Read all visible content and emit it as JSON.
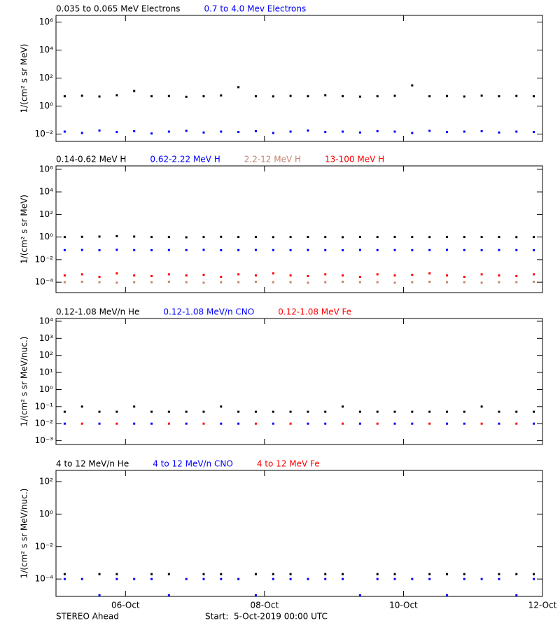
{
  "chart_data": [
    {
      "type": "scatter",
      "log": true,
      "ylabel": "1/(cm² s sr MeV)",
      "xlim": [
        0,
        7
      ],
      "xticks": [
        1,
        3,
        5,
        7
      ],
      "ylim": [
        0.003,
        3000000
      ],
      "yticks": [
        {
          "value": 0.01,
          "label": "10⁻²"
        },
        {
          "value": 1,
          "label": "10⁰"
        },
        {
          "value": 100,
          "label": "10²"
        },
        {
          "value": 10000,
          "label": "10⁴"
        },
        {
          "value": 1000000,
          "label": "10⁶"
        }
      ],
      "x": [
        0.125,
        0.375,
        0.625,
        0.875,
        1.125,
        1.375,
        1.625,
        1.875,
        2.125,
        2.375,
        2.625,
        2.875,
        3.125,
        3.375,
        3.625,
        3.875,
        4.125,
        4.375,
        4.625,
        4.875,
        5.125,
        5.375,
        5.625,
        5.875,
        6.125,
        6.375,
        6.625,
        6.875
      ],
      "series": [
        {
          "name": "0.035 to 0.065 MeV Electrons",
          "color": "#000000",
          "values": [
            5,
            5.5,
            4.8,
            6,
            12,
            5,
            5.2,
            4.6,
            5,
            5.8,
            22,
            5,
            4.9,
            5.3,
            5,
            6,
            5.1,
            4.7,
            5,
            5.4,
            30,
            5,
            5.2,
            4.8,
            5.6,
            5,
            5.3,
            5
          ]
        },
        {
          "name": "0.7 to 4.0 Mev Electrons",
          "color": "#0000ff",
          "values": [
            0.015,
            0.012,
            0.018,
            0.014,
            0.016,
            0.011,
            0.015,
            0.017,
            0.013,
            0.015,
            0.014,
            0.016,
            0.012,
            0.015,
            0.018,
            0.014,
            0.015,
            0.013,
            0.016,
            0.015,
            0.012,
            0.017,
            0.014,
            0.015,
            0.016,
            0.013,
            0.015,
            0.014
          ]
        }
      ]
    },
    {
      "type": "scatter",
      "log": true,
      "ylabel": "1/(cm² s sr MeV)",
      "xlim": [
        0,
        7
      ],
      "xticks": [
        1,
        3,
        5,
        7
      ],
      "ylim": [
        1.2e-05,
        2000000
      ],
      "yticks": [
        {
          "value": 0.0001,
          "label": "10⁻⁴"
        },
        {
          "value": 0.01,
          "label": "10⁻²"
        },
        {
          "value": 1,
          "label": "10⁰"
        },
        {
          "value": 100,
          "label": "10²"
        },
        {
          "value": 10000,
          "label": "10⁴"
        },
        {
          "value": 1000000,
          "label": "10⁶"
        }
      ],
      "x": [
        0.125,
        0.375,
        0.625,
        0.875,
        1.125,
        1.375,
        1.625,
        1.875,
        2.125,
        2.375,
        2.625,
        2.875,
        3.125,
        3.375,
        3.625,
        3.875,
        4.125,
        4.375,
        4.625,
        4.875,
        5.125,
        5.375,
        5.625,
        5.875,
        6.125,
        6.375,
        6.625,
        6.875
      ],
      "series": [
        {
          "name": "0.14-0.62 MeV H",
          "color": "#000000",
          "values": [
            1,
            1.05,
            1.1,
            1.2,
            1.1,
            1,
            1,
            0.95,
            1,
            1.05,
            1,
            1,
            0.98,
            1,
            1.02,
            1,
            0.97,
            1,
            1,
            1.03,
            1,
            0.99,
            1,
            1,
            1.02,
            1,
            0.98,
            1
          ]
        },
        {
          "name": "0.62-2.22 MeV H",
          "color": "#0000ff",
          "values": [
            0.07,
            0.072,
            0.068,
            0.074,
            0.07,
            0.069,
            0.071,
            0.07,
            0.073,
            0.068,
            0.07,
            0.072,
            0.07,
            0.069,
            0.071,
            0.07,
            0.068,
            0.072,
            0.07,
            0.071,
            0.069,
            0.07,
            0.073,
            0.07,
            0.068,
            0.071,
            0.07,
            0.069
          ]
        },
        {
          "name": "2.2-12 MeV H",
          "color": "#c8826e",
          "values": [
            0.0001,
            0.00011,
            0.0001,
            9e-05,
            0.0001,
            0.0001,
            0.00011,
            0.0001,
            9e-05,
            0.0001,
            0.0001,
            0.00011,
            0.0001,
            0.0001,
            9e-05,
            0.0001,
            0.00011,
            0.0001,
            0.0001,
            9e-05,
            0.0001,
            0.00011,
            0.0001,
            0.0001,
            9e-05,
            0.0001,
            0.0001,
            0.00011
          ]
        },
        {
          "name": "13-100 MeV H",
          "color": "#ff0000",
          "values": [
            0.0004,
            0.0005,
            0.0003,
            0.0006,
            0.0004,
            0.00035,
            0.0005,
            0.0004,
            0.00045,
            0.0003,
            0.0005,
            0.0004,
            0.0006,
            0.0004,
            0.00035,
            0.0005,
            0.0004,
            0.0003,
            0.0005,
            0.0004,
            0.00045,
            0.0006,
            0.0004,
            0.0003,
            0.0005,
            0.0004,
            0.00035,
            0.0005
          ]
        }
      ]
    },
    {
      "type": "scatter",
      "log": true,
      "ylabel": "1/(cm² s sr MeV/nuc.)",
      "xlim": [
        0,
        7
      ],
      "xticks": [
        1,
        3,
        5,
        7
      ],
      "ylim": [
        0.0006,
        14500
      ],
      "yticks": [
        {
          "value": 0.001,
          "label": "10⁻³"
        },
        {
          "value": 0.01,
          "label": "10⁻²"
        },
        {
          "value": 0.1,
          "label": "10⁻¹"
        },
        {
          "value": 1,
          "label": "10⁰"
        },
        {
          "value": 10,
          "label": "10¹"
        },
        {
          "value": 100,
          "label": "10²"
        },
        {
          "value": 1000,
          "label": "10³"
        },
        {
          "value": 10000,
          "label": "10⁴"
        }
      ],
      "x": [
        0.125,
        0.375,
        0.625,
        0.875,
        1.125,
        1.375,
        1.625,
        1.875,
        2.125,
        2.375,
        2.625,
        2.875,
        3.125,
        3.375,
        3.625,
        3.875,
        4.125,
        4.375,
        4.625,
        4.875,
        5.125,
        5.375,
        5.625,
        5.875,
        6.125,
        6.375,
        6.625,
        6.875
      ],
      "series": [
        {
          "name": "0.12-1.08 MeV/n He",
          "color": "#000000",
          "values": [
            0.05,
            0.1,
            0.05,
            0.05,
            0.1,
            0.05,
            0.05,
            0.05,
            0.05,
            0.1,
            0.05,
            0.05,
            0.05,
            0.05,
            0.05,
            0.05,
            0.1,
            0.05,
            0.05,
            0.05,
            0.05,
            0.05,
            0.05,
            0.05,
            0.1,
            0.05,
            0.05,
            0.05
          ]
        },
        {
          "name": "0.12-1.08 MeV/n CNO",
          "color": "#0000ff",
          "values": [
            0.01,
            null,
            0.01,
            null,
            0.01,
            0.01,
            null,
            0.01,
            null,
            0.01,
            0.01,
            null,
            0.01,
            null,
            0.01,
            0.01,
            null,
            0.01,
            null,
            0.01,
            0.01,
            null,
            0.01,
            0.01,
            null,
            0.01,
            null,
            0.01
          ]
        },
        {
          "name": "0.12-1.08 MeV Fe",
          "color": "#ff0000",
          "values": [
            null,
            0.01,
            null,
            0.01,
            null,
            null,
            0.01,
            null,
            0.01,
            null,
            null,
            0.01,
            null,
            0.01,
            null,
            null,
            0.01,
            null,
            0.01,
            null,
            null,
            0.01,
            null,
            null,
            0.01,
            null,
            0.01,
            null
          ]
        }
      ]
    },
    {
      "type": "scatter",
      "log": true,
      "ylabel": "1/(cm² s sr MeV/nuc.)",
      "xlim": [
        0,
        7
      ],
      "xticks": [
        {
          "value": 1,
          "label": "06-Oct"
        },
        {
          "value": 3,
          "label": "08-Oct"
        },
        {
          "value": 5,
          "label": "10-Oct"
        },
        {
          "value": 7,
          "label": "12-Oct"
        }
      ],
      "ylim": [
        8.5e-06,
        490
      ],
      "yticks": [
        {
          "value": 0.0001,
          "label": "10⁻⁴"
        },
        {
          "value": 0.01,
          "label": "10⁻²"
        },
        {
          "value": 1,
          "label": "10⁰"
        },
        {
          "value": 100,
          "label": "10²"
        }
      ],
      "x": [
        0.125,
        0.375,
        0.625,
        0.875,
        1.125,
        1.375,
        1.625,
        1.875,
        2.125,
        2.375,
        2.625,
        2.875,
        3.125,
        3.375,
        3.625,
        3.875,
        4.125,
        4.375,
        4.625,
        4.875,
        5.125,
        5.375,
        5.625,
        5.875,
        6.125,
        6.375,
        6.625,
        6.875
      ],
      "series": [
        {
          "name": "4 to 12 MeV/n He",
          "color": "#000000",
          "values": [
            0.0002,
            null,
            0.0002,
            0.0002,
            null,
            0.0002,
            0.0002,
            null,
            0.0002,
            0.0002,
            null,
            0.0002,
            0.0002,
            0.0002,
            null,
            0.0002,
            0.0002,
            null,
            0.0002,
            0.0002,
            null,
            0.0002,
            0.0002,
            0.0002,
            null,
            0.0002,
            0.0002,
            0.0002
          ]
        },
        {
          "name": "4 to 12 MeV/n CNO",
          "color": "#0000ff",
          "values": [
            0.0001,
            0.0001,
            1e-05,
            0.0001,
            0.0001,
            0.0001,
            1e-05,
            0.0001,
            0.0001,
            0.0001,
            0.0001,
            1e-05,
            0.0001,
            0.0001,
            0.0001,
            0.0001,
            0.0001,
            1e-05,
            0.0001,
            0.0001,
            0.0001,
            0.0001,
            1e-05,
            0.0001,
            0.0001,
            0.0001,
            1e-05,
            0.0001
          ]
        },
        {
          "name": "4 to 12 MeV Fe",
          "color": "#ff0000",
          "values": [
            null,
            null,
            null,
            null,
            null,
            null,
            null,
            null,
            null,
            null,
            null,
            null,
            null,
            null,
            null,
            null,
            null,
            null,
            null,
            null,
            null,
            null,
            null,
            null,
            null,
            null,
            null,
            null
          ]
        }
      ]
    }
  ],
  "footer": {
    "left": "STEREO Ahead",
    "right": "Start:  5-Oct-2019 00:00 UTC"
  }
}
